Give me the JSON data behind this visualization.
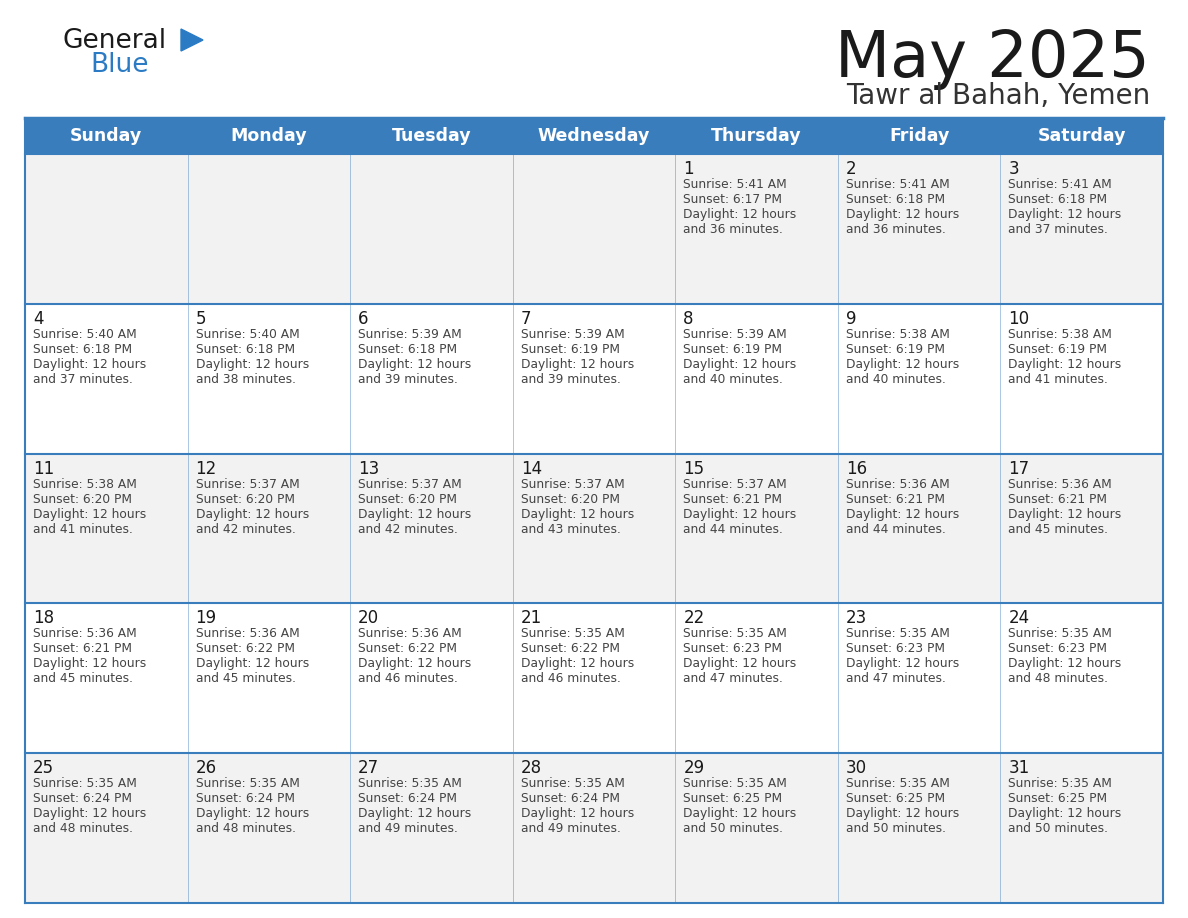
{
  "title": "May 2025",
  "subtitle": "Tawr al Bahah, Yemen",
  "days_of_week": [
    "Sunday",
    "Monday",
    "Tuesday",
    "Wednesday",
    "Thursday",
    "Friday",
    "Saturday"
  ],
  "header_bg": "#3A7DBD",
  "header_text_color": "#FFFFFF",
  "cell_bg_light": "#F2F2F2",
  "cell_bg_white": "#FFFFFF",
  "cell_text_color": "#444444",
  "day_num_color": "#1A1A1A",
  "border_color": "#3A7DBD",
  "title_color": "#1A1A1A",
  "subtitle_color": "#333333",
  "logo_general_color": "#1A1A1A",
  "logo_blue_color": "#2B7BC4",
  "calendar_data": [
    [
      null,
      null,
      null,
      null,
      {
        "day": 1,
        "sunrise": "5:41 AM",
        "sunset": "6:17 PM",
        "daylight": "12 hours and 36 minutes"
      },
      {
        "day": 2,
        "sunrise": "5:41 AM",
        "sunset": "6:18 PM",
        "daylight": "12 hours and 36 minutes"
      },
      {
        "day": 3,
        "sunrise": "5:41 AM",
        "sunset": "6:18 PM",
        "daylight": "12 hours and 37 minutes"
      }
    ],
    [
      {
        "day": 4,
        "sunrise": "5:40 AM",
        "sunset": "6:18 PM",
        "daylight": "12 hours and 37 minutes"
      },
      {
        "day": 5,
        "sunrise": "5:40 AM",
        "sunset": "6:18 PM",
        "daylight": "12 hours and 38 minutes"
      },
      {
        "day": 6,
        "sunrise": "5:39 AM",
        "sunset": "6:18 PM",
        "daylight": "12 hours and 39 minutes"
      },
      {
        "day": 7,
        "sunrise": "5:39 AM",
        "sunset": "6:19 PM",
        "daylight": "12 hours and 39 minutes"
      },
      {
        "day": 8,
        "sunrise": "5:39 AM",
        "sunset": "6:19 PM",
        "daylight": "12 hours and 40 minutes"
      },
      {
        "day": 9,
        "sunrise": "5:38 AM",
        "sunset": "6:19 PM",
        "daylight": "12 hours and 40 minutes"
      },
      {
        "day": 10,
        "sunrise": "5:38 AM",
        "sunset": "6:19 PM",
        "daylight": "12 hours and 41 minutes"
      }
    ],
    [
      {
        "day": 11,
        "sunrise": "5:38 AM",
        "sunset": "6:20 PM",
        "daylight": "12 hours and 41 minutes"
      },
      {
        "day": 12,
        "sunrise": "5:37 AM",
        "sunset": "6:20 PM",
        "daylight": "12 hours and 42 minutes"
      },
      {
        "day": 13,
        "sunrise": "5:37 AM",
        "sunset": "6:20 PM",
        "daylight": "12 hours and 42 minutes"
      },
      {
        "day": 14,
        "sunrise": "5:37 AM",
        "sunset": "6:20 PM",
        "daylight": "12 hours and 43 minutes"
      },
      {
        "day": 15,
        "sunrise": "5:37 AM",
        "sunset": "6:21 PM",
        "daylight": "12 hours and 44 minutes"
      },
      {
        "day": 16,
        "sunrise": "5:36 AM",
        "sunset": "6:21 PM",
        "daylight": "12 hours and 44 minutes"
      },
      {
        "day": 17,
        "sunrise": "5:36 AM",
        "sunset": "6:21 PM",
        "daylight": "12 hours and 45 minutes"
      }
    ],
    [
      {
        "day": 18,
        "sunrise": "5:36 AM",
        "sunset": "6:21 PM",
        "daylight": "12 hours and 45 minutes"
      },
      {
        "day": 19,
        "sunrise": "5:36 AM",
        "sunset": "6:22 PM",
        "daylight": "12 hours and 45 minutes"
      },
      {
        "day": 20,
        "sunrise": "5:36 AM",
        "sunset": "6:22 PM",
        "daylight": "12 hours and 46 minutes"
      },
      {
        "day": 21,
        "sunrise": "5:35 AM",
        "sunset": "6:22 PM",
        "daylight": "12 hours and 46 minutes"
      },
      {
        "day": 22,
        "sunrise": "5:35 AM",
        "sunset": "6:23 PM",
        "daylight": "12 hours and 47 minutes"
      },
      {
        "day": 23,
        "sunrise": "5:35 AM",
        "sunset": "6:23 PM",
        "daylight": "12 hours and 47 minutes"
      },
      {
        "day": 24,
        "sunrise": "5:35 AM",
        "sunset": "6:23 PM",
        "daylight": "12 hours and 48 minutes"
      }
    ],
    [
      {
        "day": 25,
        "sunrise": "5:35 AM",
        "sunset": "6:24 PM",
        "daylight": "12 hours and 48 minutes"
      },
      {
        "day": 26,
        "sunrise": "5:35 AM",
        "sunset": "6:24 PM",
        "daylight": "12 hours and 48 minutes"
      },
      {
        "day": 27,
        "sunrise": "5:35 AM",
        "sunset": "6:24 PM",
        "daylight": "12 hours and 49 minutes"
      },
      {
        "day": 28,
        "sunrise": "5:35 AM",
        "sunset": "6:24 PM",
        "daylight": "12 hours and 49 minutes"
      },
      {
        "day": 29,
        "sunrise": "5:35 AM",
        "sunset": "6:25 PM",
        "daylight": "12 hours and 50 minutes"
      },
      {
        "day": 30,
        "sunrise": "5:35 AM",
        "sunset": "6:25 PM",
        "daylight": "12 hours and 50 minutes"
      },
      {
        "day": 31,
        "sunrise": "5:35 AM",
        "sunset": "6:25 PM",
        "daylight": "12 hours and 50 minutes"
      }
    ]
  ]
}
